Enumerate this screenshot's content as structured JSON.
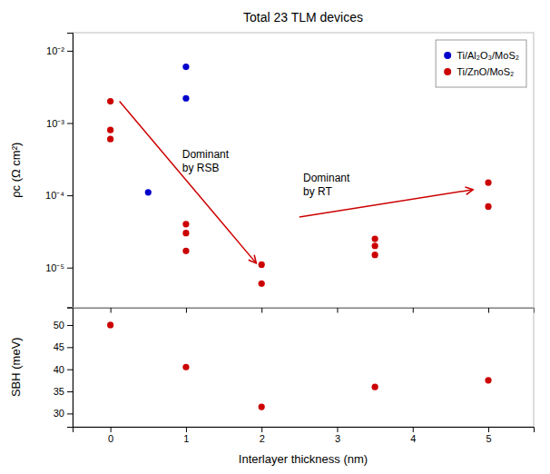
{
  "chart_data": [
    {
      "type": "scatter",
      "title": "Total 23 TLM devices",
      "ylabel": "ρc (Ω cm²)",
      "log": "y",
      "grid": false,
      "legend": "upper right",
      "tick_labels": "y",
      "xlim": [
        -0.5,
        5.6
      ],
      "xticks": [
        0,
        1,
        2,
        3,
        4,
        5
      ],
      "ylim": [
        2.818382931264454e-06,
        0.01778279410038923
      ],
      "yticks": [
        {
          "value": 1e-05,
          "label": "10⁻⁵"
        },
        {
          "value": 0.0001,
          "label": "10⁻⁴"
        },
        {
          "value": 0.001,
          "label": "10⁻³"
        },
        {
          "value": 0.01,
          "label": "10⁻²"
        }
      ],
      "series": [
        {
          "name": "Ti/Al₂O₃/MoS₂",
          "color": "#0000cc",
          "marker": "circle",
          "x": [
            0.5,
            1.0,
            1.0
          ],
          "values": [
            0.00011,
            0.006,
            0.0022
          ]
        },
        {
          "name": "Ti/ZnO/MoS₂",
          "color": "#cc0000",
          "marker": "circle",
          "x": [
            0.0,
            0.0,
            0.0,
            1.0,
            1.0,
            1.0,
            2.0,
            2.0,
            3.5,
            3.5,
            3.5,
            5.0,
            5.0
          ],
          "values": [
            0.002,
            0.0008,
            0.0006,
            4e-05,
            3e-05,
            1.7e-05,
            1.1e-05,
            6e-06,
            2.5e-05,
            2e-05,
            1.5e-05,
            0.00015,
            7e-05
          ]
        }
      ],
      "annotations": [
        {
          "type": "arrow",
          "x": 0.12,
          "y": 0.002,
          "x_end": 1.93,
          "y_end": 1.15e-05,
          "color": "#cc0000"
        },
        {
          "text": "Dominant\nby RSB",
          "x": 0.95,
          "y": 0.0003
        },
        {
          "type": "arrow",
          "x": 2.5,
          "y": 5e-05,
          "x_end": 4.8,
          "y_end": 0.00012,
          "color": "#cc0000"
        },
        {
          "text": "Dominant\nby RT",
          "x": 2.55,
          "y": 0.00014
        }
      ]
    },
    {
      "type": "scatter",
      "xlabel": "Interlayer thickness (nm)",
      "ylabel": "SBH (meV)",
      "grid": false,
      "xlim": [
        -0.5,
        5.6
      ],
      "xticks": [
        0,
        1,
        2,
        3,
        4,
        5
      ],
      "ylim": [
        27,
        54
      ],
      "yticks": [
        30,
        35,
        40,
        45,
        50
      ],
      "series": [
        {
          "color": "#cc0000",
          "marker": "circle",
          "x": [
            0.0,
            1.0,
            2.0,
            3.5,
            5.0
          ],
          "values": [
            50,
            40.5,
            31.5,
            36,
            37.5
          ]
        }
      ]
    }
  ]
}
